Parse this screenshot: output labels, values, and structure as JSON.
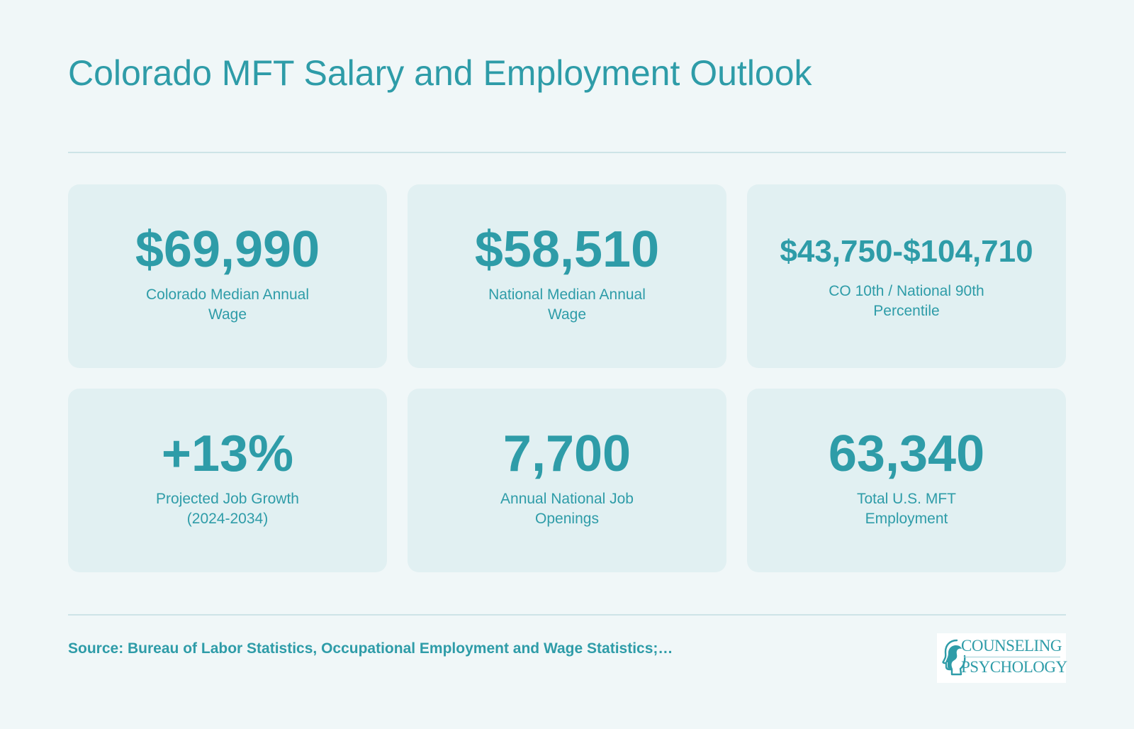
{
  "header": {
    "title": "Colorado MFT Salary and Employment Outlook"
  },
  "stats": [
    {
      "value": "$69,990",
      "label": "Colorado Median Annual Wage"
    },
    {
      "value": "$58,510",
      "label": "National Median Annual Wage"
    },
    {
      "value": "$43,750-$104,710",
      "label": "CO 10th / National 90th Percentile"
    },
    {
      "value": "+13%",
      "label": "Projected Job Growth (2024-2034)"
    },
    {
      "value": "7,700",
      "label": "Annual National Job Openings"
    },
    {
      "value": "63,340",
      "label": "Total U.S. MFT Employment"
    }
  ],
  "footer": {
    "source": "Source: Bureau of Labor Statistics, Occupational Employment and Wage Statistics;…"
  },
  "logo": {
    "line1": "COUNSELING",
    "line2": "PSYCHOLOGY",
    "icon": "head-silhouette-icon"
  },
  "colors": {
    "accent": "#2e9ca8",
    "background": "#f0f7f8",
    "card": "#e1f0f2",
    "rule": "#cde4e7"
  }
}
